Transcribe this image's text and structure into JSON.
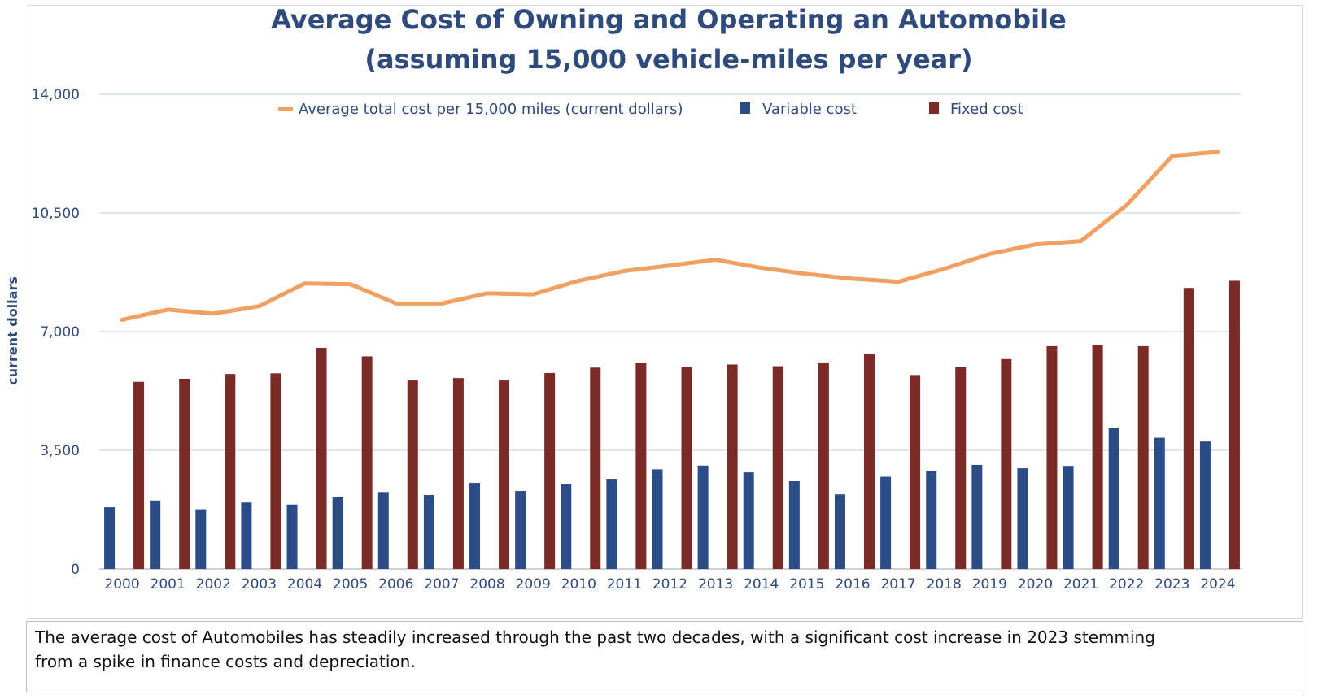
{
  "chart_data": {
    "type": "bar",
    "title": "Average Cost of Owning and Operating an Automobile",
    "subtitle": "(assuming 15,000 vehicle-miles per year)",
    "ylabel": "current dollars",
    "xlabel": "",
    "ylim": [
      0,
      14000
    ],
    "yticks": [
      "0",
      "3,500",
      "7,000",
      "10,500",
      "14,000"
    ],
    "ytick_values": [
      0,
      3500,
      7000,
      10500,
      14000
    ],
    "categories": [
      "2000",
      "2001",
      "2002",
      "2003",
      "2004",
      "2005",
      "2006",
      "2007",
      "2008",
      "2009",
      "2010",
      "2011",
      "2012",
      "2013",
      "2014",
      "2015",
      "2016",
      "2017",
      "2018",
      "2019",
      "2020",
      "2021",
      "2022",
      "2023",
      "2024"
    ],
    "grid": true,
    "legend_position": "top",
    "series": [
      {
        "name": "Average total cost per 15,000 miles (current dollars)",
        "type": "line",
        "color": "#f0a060",
        "values": [
          7350,
          7650,
          7530,
          7750,
          8420,
          8400,
          7830,
          7830,
          8130,
          8100,
          8500,
          8790,
          8950,
          9120,
          8880,
          8700,
          8560,
          8470,
          8850,
          9290,
          9570,
          9670,
          10730,
          12180,
          12300
        ]
      },
      {
        "name": "Variable cost",
        "type": "bar",
        "color": "#2b4c87",
        "values": [
          1820,
          2020,
          1760,
          1960,
          1900,
          2110,
          2270,
          2180,
          2540,
          2300,
          2510,
          2660,
          2940,
          3050,
          2850,
          2590,
          2200,
          2720,
          2890,
          3070,
          2970,
          3040,
          4150,
          3870,
          3760
        ]
      },
      {
        "name": "Fixed cost",
        "type": "bar",
        "color": "#7b2a28",
        "values": [
          5520,
          5610,
          5750,
          5770,
          6520,
          6270,
          5560,
          5630,
          5560,
          5780,
          5940,
          6080,
          5970,
          6030,
          5980,
          6090,
          6350,
          5720,
          5960,
          6190,
          6570,
          6600,
          6570,
          8290,
          8500
        ]
      }
    ]
  },
  "caption": {
    "line1": "The average cost of Automobiles has steadily increased through the past two decades, with a significant cost increase in 2023 stemming",
    "line2": "from a spike in finance costs and depreciation."
  }
}
